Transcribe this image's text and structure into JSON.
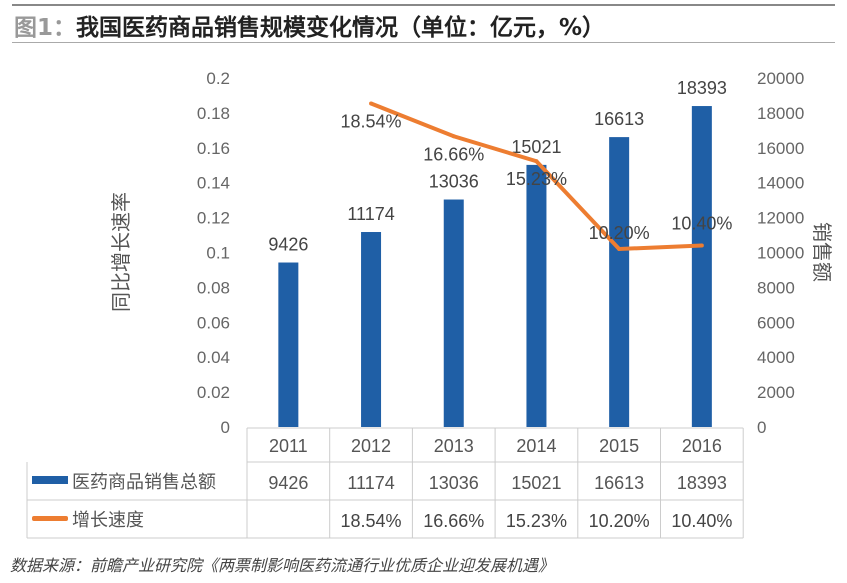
{
  "header": {
    "prefix": "图1：",
    "title": "我国医药商品销售规模变化情况（单位：亿元，%）"
  },
  "source": "数据来源：前瞻产业研究院《两票制影响医药流通行业优质企业迎发展机遇》",
  "colors": {
    "bar": "#1f5fa6",
    "line": "#ed7d31"
  },
  "chart_data": {
    "type": "bar+line",
    "categories": [
      "2011",
      "2012",
      "2013",
      "2014",
      "2015",
      "2016"
    ],
    "series": [
      {
        "name": "医药商品销售总额",
        "type": "bar",
        "axis": "right",
        "values": [
          9426,
          11174,
          13036,
          15021,
          16613,
          18393
        ],
        "labels": [
          "9426",
          "11174",
          "13036",
          "15021",
          "16613",
          "18393"
        ]
      },
      {
        "name": "增长速度",
        "type": "line",
        "axis": "left",
        "values": [
          null,
          0.1854,
          0.1666,
          0.1523,
          0.102,
          0.104
        ],
        "labels": [
          "",
          "18.54%",
          "16.66%",
          "15.23%",
          "10.20%",
          "10.40%"
        ]
      }
    ],
    "ylabel_left": "同比增长速率",
    "ylim_left": [
      0,
      0.2
    ],
    "yticks_left": [
      "0",
      "0.02",
      "0.04",
      "0.06",
      "0.08",
      "0.1",
      "0.12",
      "0.14",
      "0.16",
      "0.18",
      "0.2"
    ],
    "ylabel_right": "销售额",
    "ylim_right": [
      0,
      20000
    ],
    "yticks_right": [
      "0",
      "2000",
      "4000",
      "6000",
      "8000",
      "10000",
      "12000",
      "14000",
      "16000",
      "18000",
      "20000"
    ],
    "grid": false,
    "legend": "data-table-below"
  }
}
